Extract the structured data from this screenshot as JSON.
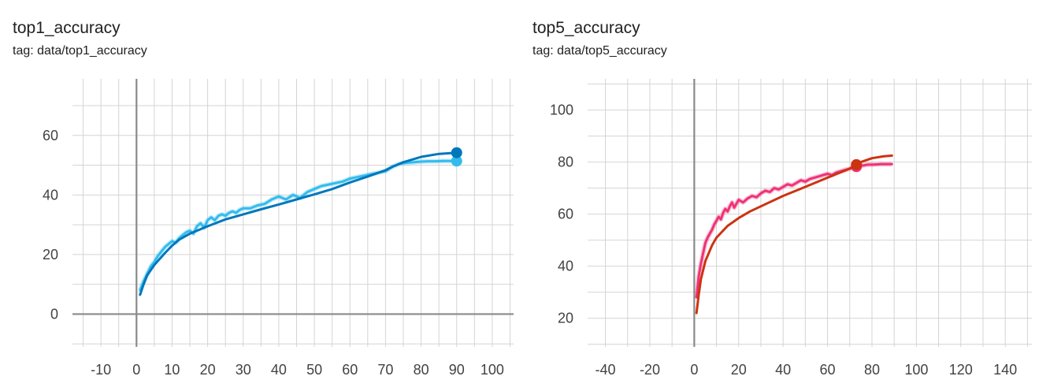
{
  "charts": [
    {
      "title": "top1_accuracy",
      "subtitle": "tag: data/top1_accuracy"
    },
    {
      "title": "top5_accuracy",
      "subtitle": "tag: data/top5_accuracy"
    }
  ],
  "chart_data": [
    {
      "type": "line",
      "title": "top1_accuracy",
      "xlabel": "",
      "ylabel": "",
      "xlim": [
        -18,
        106
      ],
      "ylim": [
        -11,
        79
      ],
      "x_ticks": [
        -10,
        0,
        10,
        20,
        30,
        40,
        50,
        60,
        70,
        80,
        90,
        100
      ],
      "y_ticks": [
        0,
        20,
        40,
        60
      ],
      "x_grid": [
        -15,
        -10,
        -5,
        0,
        5,
        10,
        15,
        20,
        25,
        30,
        35,
        40,
        45,
        50,
        55,
        60,
        65,
        70,
        75,
        80,
        85,
        90,
        95,
        100,
        105
      ],
      "y_grid": [
        -10,
        0,
        10,
        20,
        30,
        40,
        50,
        60,
        70
      ],
      "grid": true,
      "series": [
        {
          "color": "#0077bb",
          "smoothed": true,
          "marker_at_end": true,
          "x": [
            1,
            2,
            3,
            5,
            8,
            10,
            12,
            15,
            20,
            25,
            30,
            35,
            40,
            45,
            50,
            55,
            60,
            65,
            70,
            72,
            75,
            80,
            85,
            90
          ],
          "values": [
            6.5,
            10,
            13,
            16.5,
            20.5,
            23,
            25,
            27,
            29.5,
            31.8,
            33.5,
            35.2,
            36.8,
            38.5,
            40.2,
            42,
            44.2,
            46.2,
            48.3,
            49.5,
            51,
            52.8,
            53.8,
            54.2
          ]
        },
        {
          "color": "#33bbee",
          "smoothed": false,
          "marker_at_end": true,
          "x": [
            1,
            2,
            3,
            4,
            5,
            6,
            7,
            8,
            9,
            10,
            11,
            12,
            13,
            14,
            15,
            16,
            17,
            18,
            19,
            20,
            21,
            22,
            23,
            24,
            25,
            26,
            27,
            28,
            29,
            30,
            32,
            34,
            36,
            38,
            40,
            42,
            44,
            46,
            48,
            50,
            52,
            54,
            56,
            58,
            60,
            62,
            64,
            66,
            68,
            70,
            72,
            74,
            76,
            78,
            80,
            82,
            84,
            86,
            88,
            90
          ],
          "values": [
            8,
            11,
            13.5,
            16,
            17.5,
            19.5,
            21,
            22.5,
            23.5,
            24.5,
            24,
            25.5,
            26.5,
            27.5,
            28,
            27,
            29.5,
            30.5,
            29,
            31.5,
            32.5,
            31.5,
            33,
            33.5,
            33,
            34,
            34.5,
            34,
            35,
            35.5,
            35.5,
            36.5,
            37,
            38.5,
            39.5,
            38.5,
            40,
            39,
            41,
            42,
            43,
            43.5,
            44,
            44.5,
            45.5,
            46,
            46.5,
            47,
            47.5,
            48,
            49.5,
            50.5,
            50.8,
            51,
            51.2,
            51.3,
            51.3,
            51.4,
            51.4,
            51.4
          ]
        }
      ]
    },
    {
      "type": "line",
      "title": "top5_accuracy",
      "xlabel": "",
      "ylabel": "",
      "xlim": [
        -48,
        152
      ],
      "ylim": [
        9,
        112
      ],
      "x_ticks": [
        -40,
        -20,
        0,
        20,
        40,
        60,
        80,
        100,
        120,
        140
      ],
      "y_ticks": [
        20,
        40,
        60,
        80,
        100
      ],
      "x_grid": [
        -40,
        -30,
        -20,
        -10,
        0,
        10,
        20,
        30,
        40,
        50,
        60,
        70,
        80,
        90,
        100,
        110,
        120,
        130,
        140,
        150
      ],
      "y_grid": [
        10,
        20,
        30,
        40,
        50,
        60,
        70,
        80,
        90,
        100,
        110
      ],
      "grid": true,
      "series": [
        {
          "color": "#cc3311",
          "smoothed": true,
          "marker_at": 73,
          "x": [
            1,
            2,
            3,
            5,
            8,
            10,
            15,
            20,
            25,
            30,
            40,
            50,
            60,
            70,
            73,
            75,
            80,
            85,
            89
          ],
          "values": [
            22,
            29,
            35,
            42,
            48,
            51,
            55.5,
            58.5,
            61,
            63,
            67,
            70.5,
            74,
            77.5,
            79,
            80,
            81.5,
            82.2,
            82.5
          ]
        },
        {
          "color": "#ee3377",
          "smoothed": false,
          "marker_at": 73,
          "x": [
            1,
            2,
            3,
            4,
            5,
            6,
            7,
            8,
            9,
            10,
            11,
            12,
            13,
            14,
            15,
            16,
            17,
            18,
            19,
            20,
            22,
            24,
            26,
            28,
            30,
            32,
            34,
            36,
            38,
            40,
            42,
            44,
            46,
            48,
            50,
            52,
            54,
            56,
            58,
            60,
            62,
            64,
            66,
            68,
            70,
            72,
            74,
            76,
            78,
            80,
            82,
            84,
            86,
            89
          ],
          "values": [
            28,
            36,
            41,
            45,
            49,
            51,
            52.5,
            54,
            56,
            57.5,
            59,
            58,
            60.5,
            62,
            61,
            63,
            64.5,
            62.5,
            64,
            65.5,
            64.5,
            66,
            67,
            66.5,
            68,
            69,
            68.5,
            70,
            69.5,
            70.5,
            71.5,
            71,
            72,
            73,
            72.5,
            73.5,
            74,
            74.5,
            75,
            75.5,
            75,
            76,
            76.5,
            77,
            77.5,
            78,
            78.5,
            78.7,
            79,
            79,
            79.1,
            79.2,
            79.2,
            79.2
          ]
        }
      ]
    }
  ]
}
